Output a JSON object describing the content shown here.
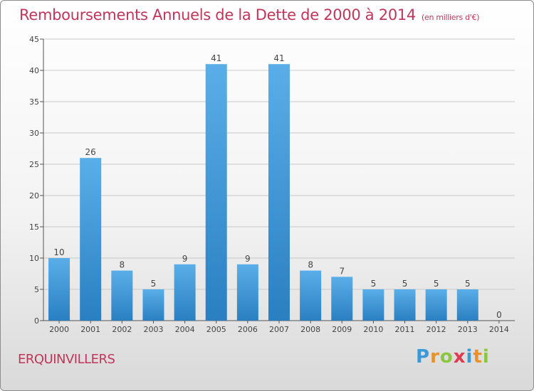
{
  "title": "Remboursements Annuels de la Dette de 2000 à 2014",
  "unit": "(en milliers d'€)",
  "commune": "ERQUINVILLERS",
  "logo": {
    "letters": [
      "P",
      "r",
      "o",
      "x",
      "i",
      "t",
      "i"
    ],
    "colors": [
      "#3a9ad9",
      "#e8922c",
      "#8cc63f",
      "#e03a4e",
      "#3a9ad9",
      "#e8922c",
      "#8cc63f"
    ]
  },
  "colors": {
    "bar_top": "#5aaee8",
    "bar_bottom": "#2a7fc1",
    "accent": "#c0365b"
  },
  "chart_data": {
    "type": "bar",
    "categories": [
      "2000",
      "2001",
      "2002",
      "2003",
      "2004",
      "2005",
      "2006",
      "2007",
      "2008",
      "2009",
      "2010",
      "2011",
      "2012",
      "2013",
      "2014"
    ],
    "values": [
      10,
      26,
      8,
      5,
      9,
      41,
      9,
      41,
      8,
      7,
      5,
      5,
      5,
      5,
      0
    ],
    "ylim": [
      0,
      45
    ],
    "yticks": [
      0,
      5,
      10,
      15,
      20,
      25,
      30,
      35,
      40,
      45
    ],
    "grid": true
  }
}
